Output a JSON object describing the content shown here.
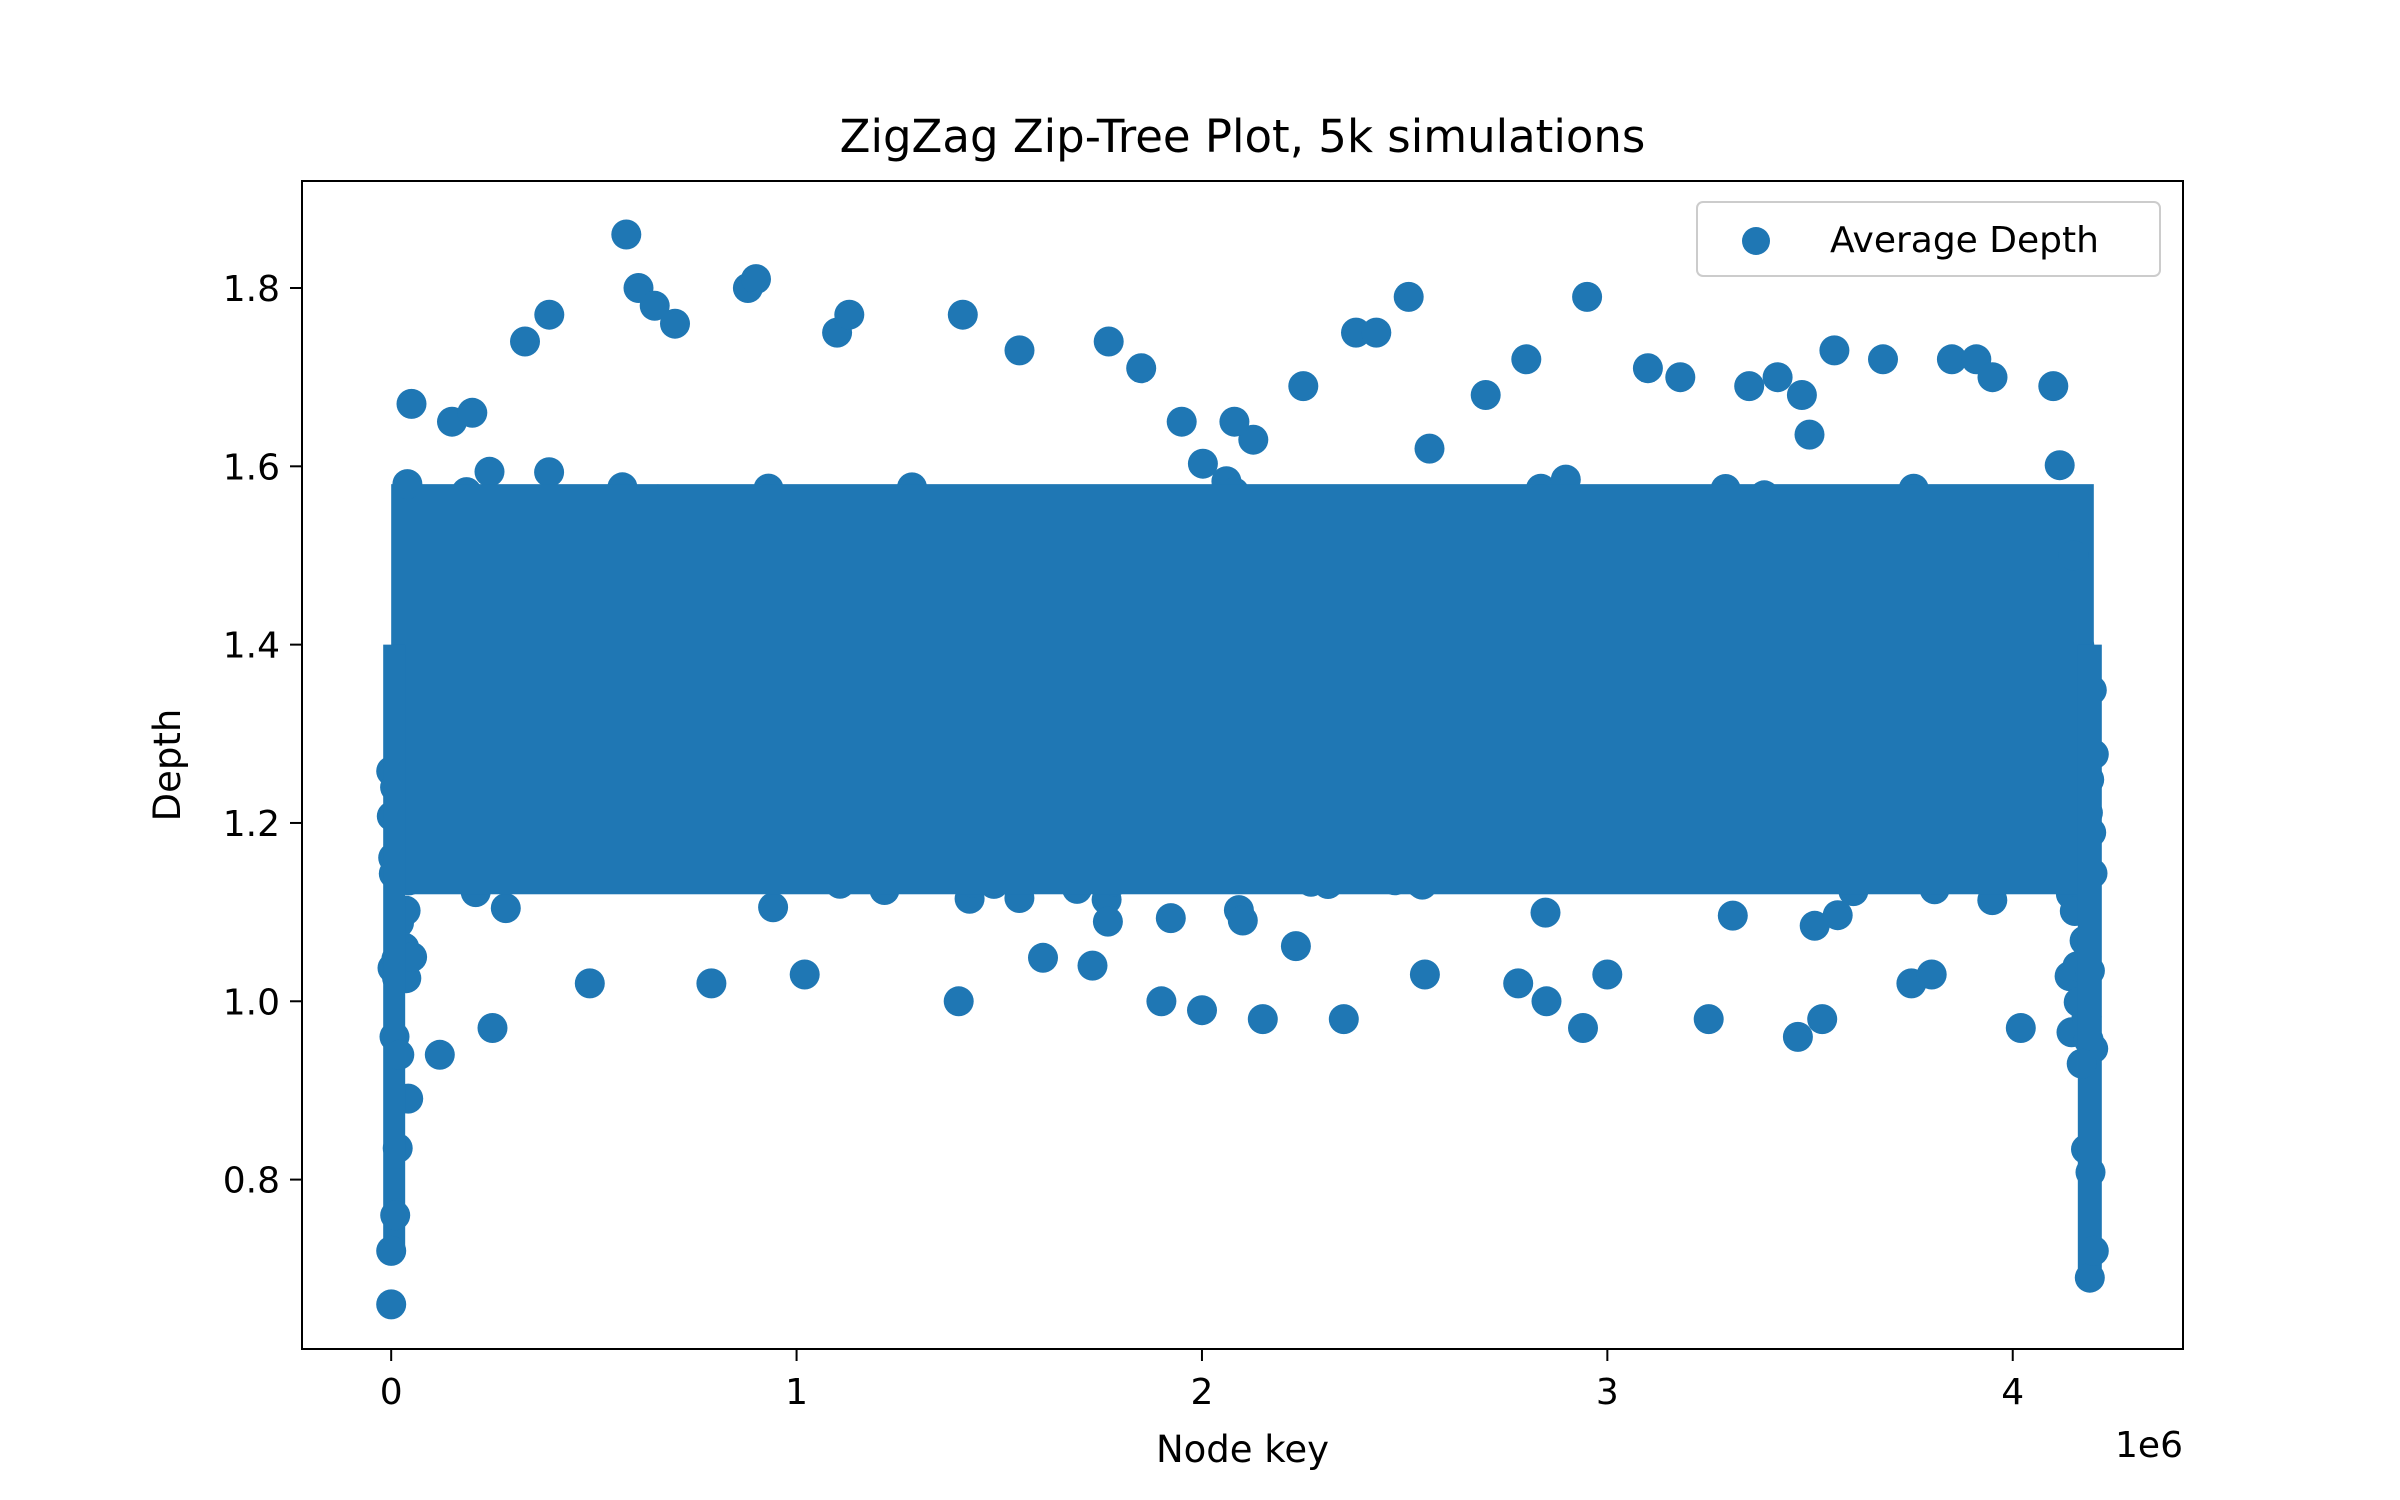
{
  "chart_data": {
    "type": "scatter",
    "title": "ZigZag Zip-Tree Plot, 5k simulations",
    "xlabel": "Node key",
    "ylabel": "Depth",
    "x_offset_label": "1e6",
    "xlim": [
      -220000,
      4420000
    ],
    "ylim": [
      0.61,
      1.92
    ],
    "x_ticks": [
      0,
      1000000,
      2000000,
      3000000,
      4000000
    ],
    "x_tick_labels": [
      "0",
      "1",
      "2",
      "3",
      "4"
    ],
    "y_ticks": [
      0.8,
      1.0,
      1.2,
      1.4,
      1.6,
      1.8
    ],
    "y_tick_labels": [
      "0.8",
      "1.0",
      "1.2",
      "1.4",
      "1.6",
      "1.8"
    ],
    "grid": false,
    "legend_position": "top-right",
    "series": [
      {
        "name": "Average Depth",
        "color": "#1f77b4",
        "key_range": [
          0,
          4200000
        ],
        "points": [
          [
            0,
            0.66
          ],
          [
            0,
            0.72
          ],
          [
            10000,
            0.76
          ],
          [
            20000,
            0.94
          ],
          [
            40000,
            1.58
          ],
          [
            50000,
            1.67
          ],
          [
            120000,
            0.94
          ],
          [
            150000,
            1.65
          ],
          [
            200000,
            1.66
          ],
          [
            250000,
            0.97
          ],
          [
            330000,
            1.74
          ],
          [
            390000,
            1.77
          ],
          [
            490000,
            1.02
          ],
          [
            580000,
            1.86
          ],
          [
            610000,
            1.8
          ],
          [
            650000,
            1.78
          ],
          [
            700000,
            1.76
          ],
          [
            790000,
            1.02
          ],
          [
            880000,
            1.8
          ],
          [
            900000,
            1.81
          ],
          [
            1020000,
            1.03
          ],
          [
            1100000,
            1.75
          ],
          [
            1130000,
            1.77
          ],
          [
            1400000,
            1.0
          ],
          [
            1410000,
            1.77
          ],
          [
            1550000,
            1.73
          ],
          [
            1730000,
            1.04
          ],
          [
            1770000,
            1.74
          ],
          [
            1850000,
            1.71
          ],
          [
            1900000,
            1.0
          ],
          [
            1950000,
            1.65
          ],
          [
            2000000,
            0.99
          ],
          [
            2080000,
            1.65
          ],
          [
            2150000,
            0.98
          ],
          [
            2250000,
            1.69
          ],
          [
            2350000,
            0.98
          ],
          [
            2380000,
            1.75
          ],
          [
            2430000,
            1.75
          ],
          [
            2510000,
            1.79
          ],
          [
            2550000,
            1.03
          ],
          [
            2700000,
            1.68
          ],
          [
            2780000,
            1.02
          ],
          [
            2800000,
            1.72
          ],
          [
            2850000,
            1.0
          ],
          [
            2940000,
            0.97
          ],
          [
            2950000,
            1.79
          ],
          [
            3000000,
            1.03
          ],
          [
            3100000,
            1.71
          ],
          [
            3180000,
            1.7
          ],
          [
            3250000,
            0.98
          ],
          [
            3350000,
            1.69
          ],
          [
            3420000,
            1.7
          ],
          [
            3470000,
            0.96
          ],
          [
            3480000,
            1.68
          ],
          [
            3530000,
            0.98
          ],
          [
            3560000,
            1.73
          ],
          [
            3680000,
            1.72
          ],
          [
            3750000,
            1.02
          ],
          [
            3800000,
            1.03
          ],
          [
            3850000,
            1.72
          ],
          [
            3910000,
            1.72
          ],
          [
            3950000,
            1.7
          ],
          [
            4020000,
            0.97
          ],
          [
            4100000,
            1.69
          ],
          [
            4150000,
            1.5
          ],
          [
            4170000,
            0.93
          ],
          [
            4190000,
            0.69
          ],
          [
            4200000,
            0.72
          ]
        ]
      }
    ]
  },
  "legend": {
    "label": "Average Depth"
  }
}
